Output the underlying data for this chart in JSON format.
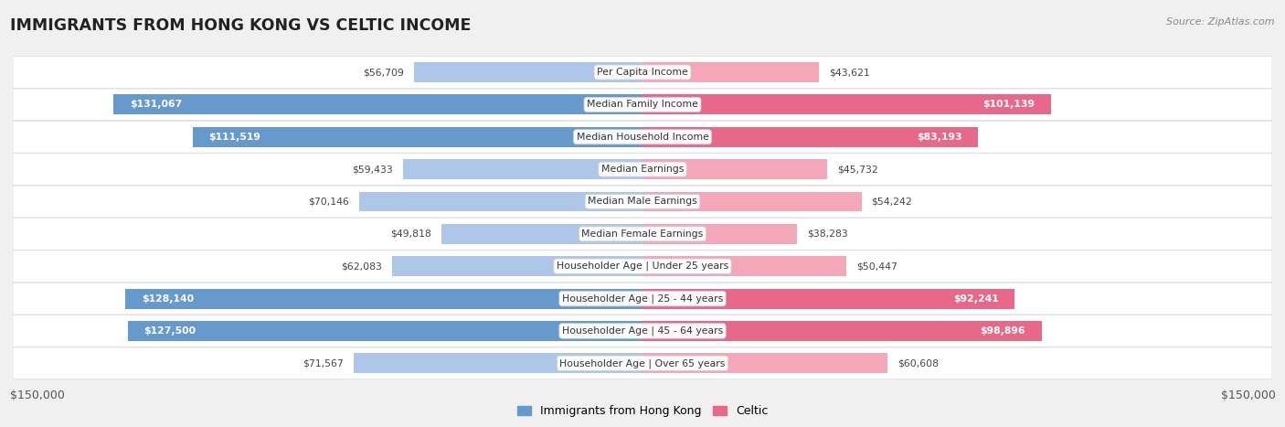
{
  "title": "IMMIGRANTS FROM HONG KONG VS CELTIC INCOME",
  "source": "Source: ZipAtlas.com",
  "categories": [
    "Per Capita Income",
    "Median Family Income",
    "Median Household Income",
    "Median Earnings",
    "Median Male Earnings",
    "Median Female Earnings",
    "Householder Age | Under 25 years",
    "Householder Age | 25 - 44 years",
    "Householder Age | 45 - 64 years",
    "Householder Age | Over 65 years"
  ],
  "hk_values": [
    56709,
    131067,
    111519,
    59433,
    70146,
    49818,
    62083,
    128140,
    127500,
    71567
  ],
  "celtic_values": [
    43621,
    101139,
    83193,
    45732,
    54242,
    38283,
    50447,
    92241,
    98896,
    60608
  ],
  "hk_labels": [
    "$56,709",
    "$131,067",
    "$111,519",
    "$59,433",
    "$70,146",
    "$49,818",
    "$62,083",
    "$128,140",
    "$127,500",
    "$71,567"
  ],
  "celtic_labels": [
    "$43,621",
    "$101,139",
    "$83,193",
    "$45,732",
    "$54,242",
    "$38,283",
    "$50,447",
    "$92,241",
    "$98,896",
    "$60,608"
  ],
  "hk_color_light": "#aec6e8",
  "hk_color_dark": "#6699cc",
  "celtic_color_light": "#f4a7b9",
  "celtic_color_dark": "#e8688a",
  "max_val": 150000,
  "hk_label_inside": [
    false,
    true,
    true,
    false,
    false,
    false,
    false,
    true,
    true,
    false
  ],
  "celtic_label_inside": [
    false,
    true,
    true,
    false,
    false,
    false,
    false,
    true,
    true,
    false
  ],
  "background_color": "#f0f0f0",
  "bar_bg_color": "#ffffff",
  "x_tick_labels": [
    "$150,000",
    "$150,000"
  ],
  "legend_hk": "Immigrants from Hong Kong",
  "legend_celtic": "Celtic"
}
